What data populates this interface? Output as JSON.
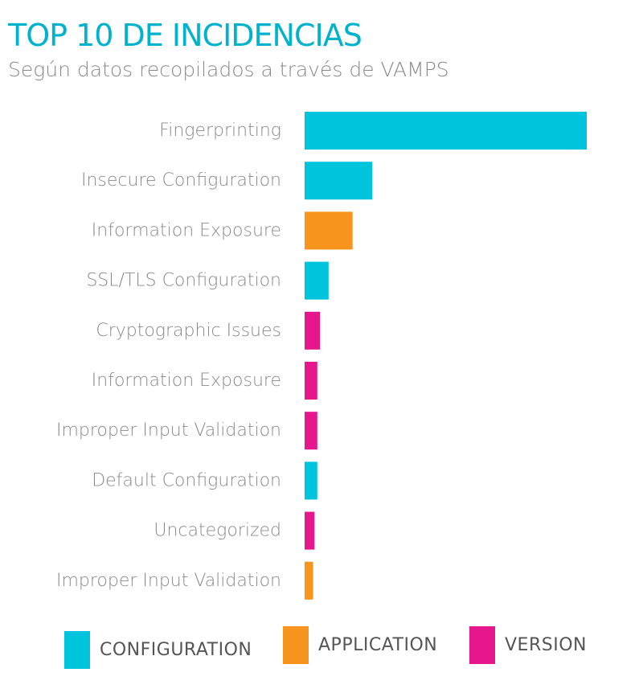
{
  "colors": {
    "title": "#00b2cc",
    "subtitle": "#8a8a8a",
    "label": "#8a8a8a",
    "legend_text": "#555555",
    "configuration": "#00c4dc",
    "application": "#f7941d",
    "version": "#e6168c"
  },
  "chart_data": {
    "type": "bar",
    "orientation": "horizontal",
    "title": "TOP 10 DE INCIDENCIAS",
    "subtitle": "Según datos recopilados a través de VAMPS",
    "grid": false,
    "legend_position": "bottom",
    "categories": [
      "Fingerprinting",
      "Insecure Configuration",
      "Information Exposure",
      "SSL/TLS Configuration",
      "Cryptographic Issues",
      "Information Exposure",
      "Improper Input Validation",
      "Default Configuration",
      "Uncategorized",
      "Improper Input Validation"
    ],
    "values": [
      100,
      24,
      17,
      8.5,
      5.5,
      4.5,
      4.5,
      4.5,
      3.5,
      3
    ],
    "groups": [
      "configuration",
      "configuration",
      "application",
      "configuration",
      "version",
      "version",
      "version",
      "configuration",
      "version",
      "application"
    ],
    "legend": [
      {
        "key": "configuration",
        "label": "CONFIGURATION"
      },
      {
        "key": "application",
        "label": "APPLICATION"
      },
      {
        "key": "version",
        "label": "VERSION"
      }
    ]
  }
}
